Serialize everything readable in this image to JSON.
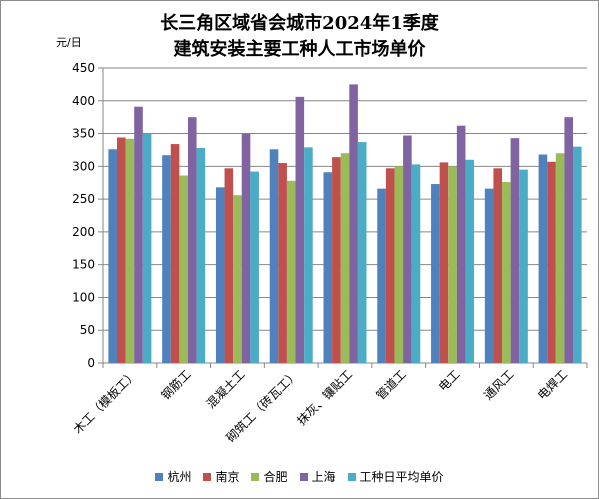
{
  "chart_data": {
    "type": "bar",
    "title": [
      "长三角区域省会城市2024年1季度",
      "建筑安装主要工种人工市场单价"
    ],
    "ylabel": "元/日",
    "xlabel": "",
    "ylim": [
      0,
      450
    ],
    "yticks": [
      0,
      50,
      100,
      150,
      200,
      250,
      300,
      350,
      400,
      450
    ],
    "grid": true,
    "legend_position": "bottom",
    "categories": [
      "木工（模板工）",
      "钢筋工",
      "混凝土工",
      "砌筑工（砖瓦工）",
      "抹灰、镶贴工",
      "管道工",
      "电工",
      "通风工",
      "电焊工"
    ],
    "series": [
      {
        "name": "杭州",
        "color": "#4f81bd",
        "values": [
          326,
          317,
          268,
          326,
          291,
          266,
          273,
          266,
          318
        ]
      },
      {
        "name": "南京",
        "color": "#c0504d",
        "values": [
          344,
          334,
          297,
          305,
          314,
          297,
          306,
          297,
          307
        ]
      },
      {
        "name": "合肥",
        "color": "#9bbb59",
        "values": [
          342,
          286,
          256,
          278,
          320,
          300,
          300,
          276,
          320
        ]
      },
      {
        "name": "上海",
        "color": "#8064a2",
        "values": [
          391,
          375,
          350,
          406,
          425,
          347,
          362,
          343,
          375
        ]
      },
      {
        "name": "工种日平均单价",
        "color": "#4bacc6",
        "values": [
          350,
          328,
          292,
          329,
          337,
          303,
          310,
          295,
          330
        ]
      }
    ]
  }
}
